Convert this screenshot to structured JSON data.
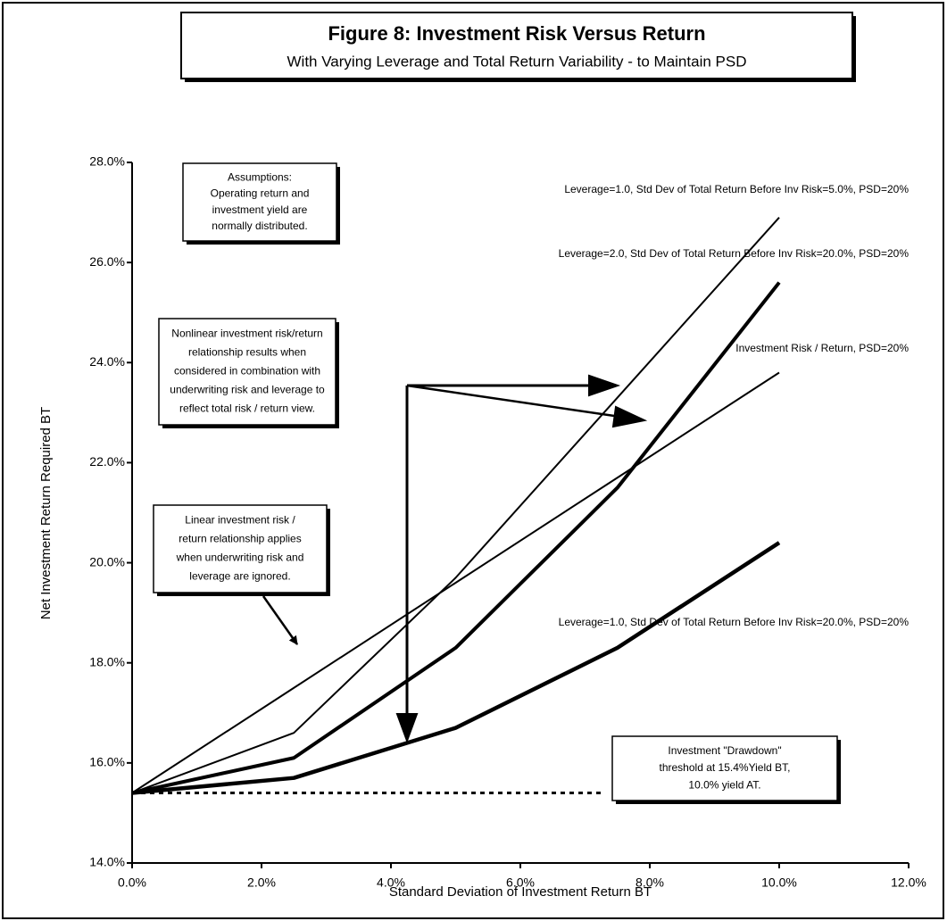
{
  "chart_data": {
    "type": "line",
    "title": "Figure 8:  Investment Risk Versus Return",
    "subtitle": "With Varying Leverage and Total Return Variability - to Maintain PSD",
    "xlabel": "Standard Deviation of Investment Return BT",
    "ylabel": "Net Investment Return Required BT",
    "x": [
      0,
      2.5,
      5,
      7.5,
      10
    ],
    "series": [
      {
        "name": "Leverage=1.0, Std Dev of Total Return Before Inv Risk=5.0%, PSD=20%",
        "color": "#000000",
        "values": [
          15.4,
          16.6,
          19.7,
          23.3,
          26.9
        ]
      },
      {
        "name": "Leverage=2.0, Std Dev of Total Return Before Inv Risk=20.0%, PSD=20%",
        "color": "#000000",
        "values": [
          15.4,
          16.1,
          18.3,
          21.5,
          25.6
        ]
      },
      {
        "name": "Investment Risk / Return,  PSD=20%",
        "color": "#000000",
        "values": [
          15.4,
          17.5,
          19.6,
          21.7,
          23.8
        ]
      },
      {
        "name": "Leverage=1.0, Std Dev of Total Return Before Inv Risk=20.0%, PSD=20%",
        "color": "#000000",
        "values": [
          15.4,
          15.7,
          16.7,
          18.3,
          20.4
        ]
      }
    ],
    "threshold": {
      "x": [
        0,
        7.3
      ],
      "values": [
        15.4,
        15.4
      ]
    },
    "xlim": [
      0,
      12
    ],
    "ylim": [
      14,
      28
    ],
    "xticks": [
      {
        "value": 0,
        "label": "0.0%"
      },
      {
        "value": 2,
        "label": "2.0%"
      },
      {
        "value": 4,
        "label": "4.0%"
      },
      {
        "value": 6,
        "label": "6.0%"
      },
      {
        "value": 8,
        "label": "8.0%"
      },
      {
        "value": 10,
        "label": "10.0%"
      },
      {
        "value": 12,
        "label": "12.0%"
      }
    ],
    "yticks": [
      {
        "value": 14,
        "label": "14.0%"
      },
      {
        "value": 16,
        "label": "16.0%"
      },
      {
        "value": 18,
        "label": "18.0%"
      },
      {
        "value": 20,
        "label": "20.0%"
      },
      {
        "value": 22,
        "label": "22.0%"
      },
      {
        "value": 24,
        "label": "24.0%"
      },
      {
        "value": 26,
        "label": "26.0%"
      },
      {
        "value": 28,
        "label": "28.0%"
      }
    ],
    "annotations": [
      {
        "lines": [
          "Assumptions:",
          "Operating return and",
          "investment yield are",
          "normally distributed."
        ]
      },
      {
        "lines": [
          "Nonlinear investment risk/return",
          "relationship results when",
          "considered in combination with",
          "underwriting risk and leverage to",
          "reflect total risk / return view."
        ]
      },
      {
        "lines": [
          "Linear investment risk /",
          "return relationship applies",
          "when underwriting risk and",
          "leverage are ignored."
        ]
      },
      {
        "lines": [
          "Investment \"Drawdown\"",
          "threshold at 15.4%Yield BT,",
          "10.0% yield AT."
        ]
      }
    ]
  }
}
